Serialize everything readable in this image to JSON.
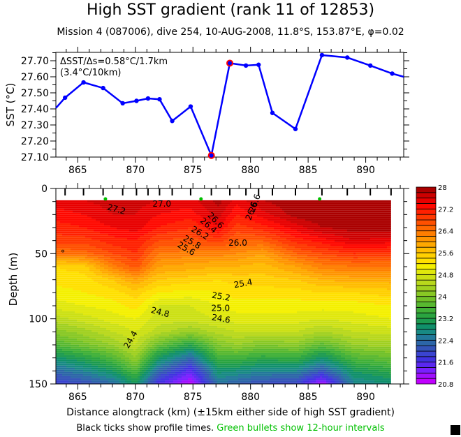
{
  "title": "High SST gradient (rank 11 of 12853)",
  "subtitle": "Mission 4 (087006),  dive 254,  10-AUG-2008,  11.8°S, 153.87°E,  φ=0.02",
  "footer": {
    "xlabel": "Distance alongtrack (km) (±15km either side of high SST gradient)",
    "note_black": "Black ticks show profile times. ",
    "note_green": "Green bullets show 12-hour intervals",
    "green_color": "#00c000"
  },
  "chart_data": [
    {
      "type": "line",
      "title": "",
      "xlabel": "",
      "ylabel": "SST (°C)",
      "xlim": [
        863.1,
        893.3
      ],
      "ylim": [
        27.1,
        27.75
      ],
      "xticks": [
        865,
        870,
        875,
        880,
        885,
        890
      ],
      "yticks": [
        27.1,
        27.2,
        27.3,
        27.4,
        27.5,
        27.6,
        27.7
      ],
      "ytick_labels": [
        "27.10",
        "27.20",
        "27.30",
        "27.40",
        "27.50",
        "27.60",
        "27.70"
      ],
      "annotation_line1": "ΔSST/Δs=0.58°C/1.7km",
      "annotation_line2": "(3.4°C/10km)",
      "line_color": "#0000ff",
      "highlight_color": "#ff0000",
      "series": [
        {
          "name": "SST",
          "x": [
            863.1,
            863.9,
            865.5,
            867.2,
            868.9,
            870.1,
            871.1,
            872.1,
            873.2,
            874.8,
            876.6,
            878.2,
            879.6,
            880.7,
            881.9,
            883.9,
            886.2,
            888.4,
            890.4,
            892.3,
            893.3
          ],
          "y": [
            27.405,
            27.47,
            27.565,
            27.53,
            27.435,
            27.45,
            27.465,
            27.46,
            27.325,
            27.415,
            27.11,
            27.685,
            27.67,
            27.675,
            27.375,
            27.275,
            27.735,
            27.72,
            27.67,
            27.62,
            27.6
          ]
        }
      ],
      "highlight_points": [
        {
          "x": 876.6,
          "y": 27.11
        },
        {
          "x": 878.2,
          "y": 27.685
        }
      ]
    },
    {
      "type": "heatmap",
      "xlabel": "Distance alongtrack (km) (±15km either side of high SST gradient)",
      "ylabel": "Depth (m)",
      "xlim": [
        863.1,
        893.3
      ],
      "ylim": [
        150,
        0
      ],
      "data_xlim": [
        863.1,
        892.2
      ],
      "data_top_depth": 9,
      "xticks": [
        865,
        870,
        875,
        880,
        885,
        890
      ],
      "yticks": [
        0,
        50,
        100,
        150
      ],
      "colorbar": {
        "min": 20.8,
        "max": 28.0,
        "step": 0.2,
        "tick_labels": [
          "28",
          "27.2",
          "26.4",
          "25.6",
          "24.8",
          "24",
          "23.2",
          "22.4",
          "21.6",
          "20.8"
        ],
        "tick_values": [
          28,
          27.2,
          26.4,
          25.6,
          24.8,
          24,
          23.2,
          22.4,
          21.6,
          20.8
        ]
      },
      "profile_x": [
        863.9,
        865.5,
        867.2,
        868.9,
        870.1,
        871.1,
        872.1,
        873.2,
        874.8,
        876.6,
        878.2,
        879.6,
        880.7,
        881.9,
        883.9,
        886.2,
        888.4,
        890.4,
        892.2
      ],
      "green_bullet_x": [
        867.4,
        875.7,
        886.0
      ],
      "depths": [
        9,
        20,
        30,
        40,
        50,
        60,
        70,
        80,
        90,
        100,
        110,
        120,
        130,
        140,
        150
      ],
      "columns": [
        {
          "x": 863.1,
          "t": [
            27.5,
            27.3,
            27.1,
            26.9,
            26.4,
            25.4,
            25.3,
            25.1,
            24.9,
            24.5,
            24.1,
            23.6,
            22.9,
            22.3,
            21.8
          ]
        },
        {
          "x": 865.5,
          "t": [
            27.6,
            27.4,
            27.2,
            26.9,
            26.5,
            25.5,
            25.3,
            25.2,
            25.0,
            24.7,
            24.3,
            23.9,
            23.2,
            22.6,
            22.0
          ]
        },
        {
          "x": 868.0,
          "t": [
            27.7,
            27.6,
            27.4,
            27.1,
            26.8,
            26.3,
            25.6,
            25.3,
            25.1,
            24.9,
            24.6,
            24.2,
            23.6,
            23.0,
            22.3
          ]
        },
        {
          "x": 870.0,
          "t": [
            27.7,
            27.6,
            27.5,
            27.2,
            27.0,
            26.7,
            26.0,
            25.5,
            25.3,
            25.0,
            24.8,
            24.6,
            24.2,
            23.6,
            23.0
          ]
        },
        {
          "x": 872.0,
          "t": [
            27.6,
            27.4,
            27.2,
            26.8,
            26.4,
            26.0,
            25.6,
            25.2,
            24.8,
            24.7,
            24.5,
            23.8,
            23.0,
            22.3,
            21.6
          ]
        },
        {
          "x": 874.8,
          "t": [
            27.5,
            27.3,
            27.0,
            26.7,
            26.3,
            25.9,
            25.5,
            25.1,
            24.8,
            24.7,
            24.2,
            23.2,
            22.3,
            21.5,
            20.9
          ]
        },
        {
          "x": 877.2,
          "t": [
            27.9,
            27.7,
            27.4,
            26.9,
            26.3,
            25.8,
            25.4,
            25.2,
            25.0,
            24.8,
            24.5,
            24.0,
            23.5,
            22.9,
            22.4
          ]
        },
        {
          "x": 878.8,
          "t": [
            27.5,
            27.2,
            26.9,
            26.6,
            26.2,
            25.8,
            25.5,
            25.3,
            25.1,
            24.9,
            24.6,
            24.2,
            23.5,
            22.8,
            22.2
          ]
        },
        {
          "x": 881.0,
          "t": [
            27.8,
            27.5,
            27.1,
            26.6,
            26.0,
            25.7,
            25.5,
            25.3,
            25.1,
            24.9,
            24.6,
            24.0,
            23.3,
            22.6,
            22.0
          ]
        },
        {
          "x": 884.0,
          "t": [
            28.0,
            27.9,
            27.5,
            27.1,
            26.6,
            26.0,
            25.6,
            25.3,
            25.1,
            24.9,
            24.6,
            24.1,
            23.4,
            22.6,
            21.9
          ]
        },
        {
          "x": 886.2,
          "t": [
            28.0,
            28.0,
            27.8,
            27.3,
            26.8,
            26.3,
            25.8,
            25.4,
            25.1,
            24.8,
            24.4,
            23.7,
            22.9,
            22.1,
            21.0
          ]
        },
        {
          "x": 889.0,
          "t": [
            28.0,
            28.0,
            27.9,
            27.6,
            27.0,
            26.4,
            25.9,
            25.4,
            25.1,
            24.9,
            24.6,
            24.2,
            23.6,
            23.0,
            22.6
          ]
        },
        {
          "x": 892.2,
          "t": [
            28.0,
            28.0,
            27.9,
            27.5,
            26.9,
            26.4,
            25.9,
            25.5,
            25.2,
            25.0,
            24.7,
            24.3,
            23.8,
            23.3,
            22.8
          ]
        }
      ],
      "contour_labels": [
        {
          "text": "27.2",
          "x": 868.3,
          "d": 18,
          "angle": 15
        },
        {
          "text": "27.0",
          "x": 872.3,
          "d": 14,
          "angle": 0
        },
        {
          "text": "26.6",
          "x": 876.8,
          "d": 26,
          "angle": 45
        },
        {
          "text": "26.4",
          "x": 876.2,
          "d": 30,
          "angle": 40
        },
        {
          "text": "26.2",
          "x": 875.5,
          "d": 36,
          "angle": 30
        },
        {
          "text": "26.0",
          "x": 878.9,
          "d": 44,
          "angle": 0
        },
        {
          "text": "25.8",
          "x": 874.8,
          "d": 43,
          "angle": 30
        },
        {
          "text": "25.6",
          "x": 874.3,
          "d": 48,
          "angle": 30
        },
        {
          "text": "25.4",
          "x": 879.4,
          "d": 75,
          "angle": -10
        },
        {
          "text": "25.2",
          "x": 877.4,
          "d": 85,
          "angle": 10
        },
        {
          "text": "25.0",
          "x": 877.4,
          "d": 94,
          "angle": 0
        },
        {
          "text": "24.8",
          "x": 872.1,
          "d": 97,
          "angle": 15
        },
        {
          "text": "24.6",
          "x": 877.4,
          "d": 102,
          "angle": 10
        },
        {
          "text": "24.4",
          "x": 869.8,
          "d": 117,
          "angle": -60
        },
        {
          "text": "26.6",
          "x": 880.6,
          "d": 12,
          "angle": -70
        },
        {
          "text": "26.6",
          "x": 880.3,
          "d": 18,
          "angle": -70
        }
      ]
    }
  ]
}
